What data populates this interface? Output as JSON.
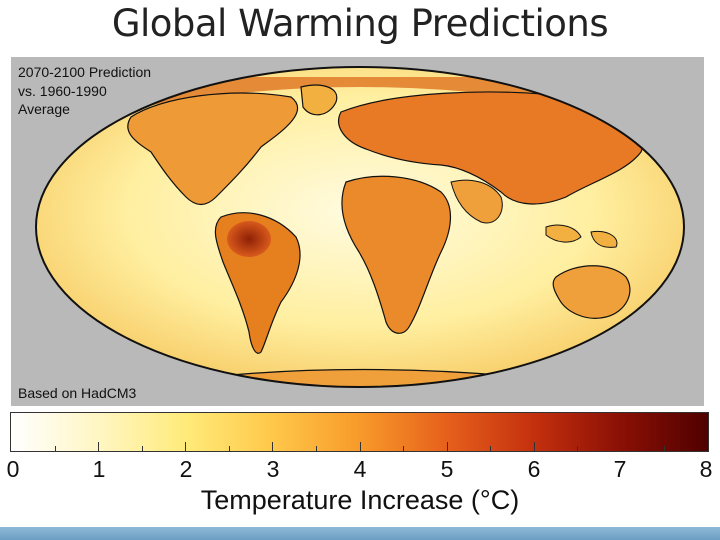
{
  "slide": {
    "title": "Global Warming Predictions"
  },
  "map": {
    "caption": "2070-2100 Prediction\nvs. 1960-1990\nAverage",
    "credit": "Based on HadCM3",
    "projection": "Mollweide",
    "colors": {
      "ocean_cool": "#fff6c4",
      "land_warm": "#f2a43a",
      "hotspot": "#9a2b0a",
      "panel_bg": "#b9b9b9"
    }
  },
  "scale": {
    "title": "Temperature Increase (°C)",
    "min": 0,
    "max": 8,
    "tick_labels": [
      "0",
      "1",
      "2",
      "3",
      "4",
      "5",
      "6",
      "7",
      "8"
    ],
    "colors": [
      "#ffffff",
      "#fff6c4",
      "#ffeb7a",
      "#ffc84a",
      "#f89a2a",
      "#e6601c",
      "#c4300e",
      "#8a1005",
      "#500000"
    ]
  },
  "footer": {
    "color": "#7fadd0"
  }
}
